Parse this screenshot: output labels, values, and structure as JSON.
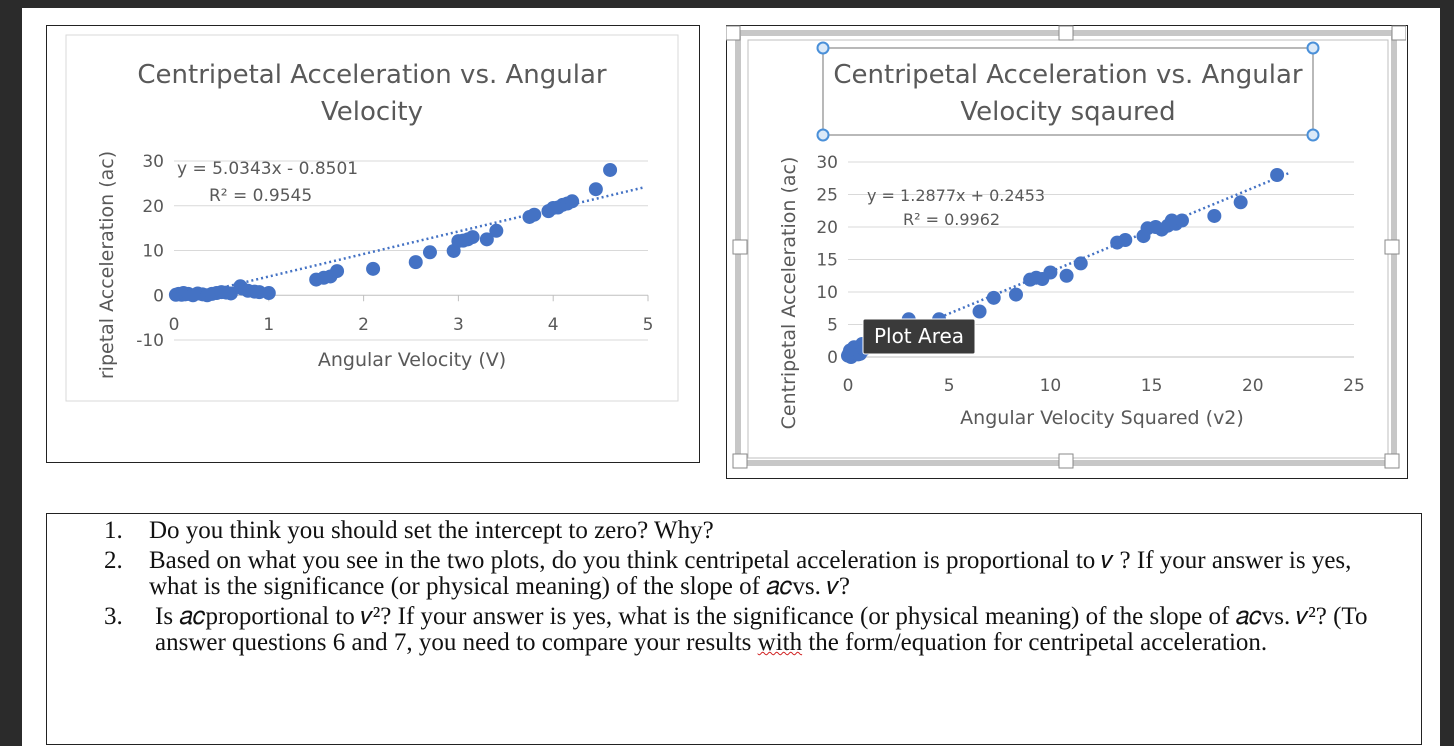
{
  "chart_data": [
    {
      "type": "scatter",
      "title": "Centripetal Acceleration vs. Angular Velocity",
      "title_lines": [
        "Centripetal Acceleration vs. Angular",
        "Velocity"
      ],
      "xlabel": "Angular Velocity (V)",
      "ylabel": "ripetal Acceleration (ac)",
      "xlim": [
        0,
        5
      ],
      "ylim": [
        -10,
        30
      ],
      "x_ticks": [
        "0",
        "1",
        "2",
        "3",
        "4",
        "5"
      ],
      "y_ticks": [
        "30",
        "20",
        "10",
        "0",
        "-10"
      ],
      "grid": true,
      "trendline": {
        "type": "linear",
        "slope": 5.0343,
        "intercept": -0.8501,
        "style": "dotted"
      },
      "equation": "y = 5.0343x - 0.8501",
      "r_squared": "R² = 0.9545",
      "series": [
        {
          "x": [
            0.02,
            0.05,
            0.08,
            0.1,
            0.12,
            0.15,
            0.2,
            0.25,
            0.3,
            0.35,
            0.4,
            0.45,
            0.5,
            0.55,
            0.6,
            0.7,
            0.72,
            0.78,
            0.85,
            0.9,
            1.0,
            1.5,
            1.58,
            1.65,
            1.72,
            2.1,
            2.55,
            2.7,
            2.95,
            3.0,
            3.05,
            3.1,
            3.15,
            3.3,
            3.4,
            3.75,
            3.8,
            3.95,
            4.0,
            4.05,
            4.1,
            4.15,
            4.2,
            4.45,
            4.6
          ],
          "y": [
            0.1,
            0.3,
            0.1,
            0.5,
            0.2,
            0.3,
            0.0,
            0.4,
            0.2,
            0.0,
            0.3,
            0.5,
            0.7,
            0.6,
            0.4,
            2.0,
            1.5,
            1.0,
            0.8,
            0.7,
            0.5,
            3.5,
            3.9,
            4.2,
            5.4,
            5.9,
            7.4,
            9.6,
            9.9,
            12.1,
            12.2,
            12.5,
            13.0,
            12.5,
            14.4,
            17.5,
            18.0,
            18.8,
            19.5,
            19.6,
            20.2,
            20.5,
            21.0,
            23.7,
            28.0
          ]
        }
      ]
    },
    {
      "type": "scatter",
      "title": "Centripetal Acceleration vs. Angular Velocity sqaured",
      "title_lines": [
        "Centripetal Acceleration vs. Angular",
        "Velocity sqaured"
      ],
      "xlabel": "Angular Velocity Squared (v2)",
      "ylabel": "Centripetal Acceleration (ac)",
      "xlim": [
        0,
        25
      ],
      "ylim": [
        0,
        30
      ],
      "x_ticks": [
        "0",
        "5",
        "10",
        "15",
        "20",
        "25"
      ],
      "y_ticks": [
        "30",
        "25",
        "20",
        "15",
        "10",
        "5",
        "0"
      ],
      "grid": true,
      "trendline": {
        "type": "linear",
        "slope": 1.2877,
        "intercept": 0.2453,
        "style": "dotted"
      },
      "equation": "y = 1.2877x + 0.2453",
      "r_squared": "R² = 0.9962",
      "series": [
        {
          "x": [
            0.0,
            0.05,
            0.1,
            0.15,
            0.2,
            0.3,
            0.4,
            0.5,
            0.6,
            0.7,
            0.8,
            3.0,
            4.5,
            6.5,
            7.2,
            8.3,
            9.0,
            9.3,
            9.6,
            10.0,
            10.8,
            11.5,
            13.3,
            13.7,
            14.6,
            14.8,
            15.2,
            15.5,
            15.8,
            16.0,
            16.2,
            16.5,
            18.1,
            19.4,
            21.2
          ],
          "y": [
            0.2,
            0.5,
            1.0,
            0.0,
            0.3,
            1.5,
            0.8,
            0.4,
            0.5,
            2.0,
            1.2,
            5.8,
            5.8,
            7.0,
            9.1,
            9.6,
            11.9,
            12.2,
            12.0,
            13.0,
            12.5,
            14.4,
            17.6,
            18.0,
            18.6,
            19.8,
            20.0,
            19.6,
            20.2,
            21.0,
            20.5,
            21.0,
            21.7,
            23.8,
            28.0
          ]
        }
      ]
    }
  ],
  "tooltip": {
    "label": "Plot Area"
  },
  "questions": [
    {
      "num": "1.",
      "text": "Do you think you should set the intercept to zero? Why?"
    },
    {
      "num": "2.",
      "text": "Based on what you see in the two plots, do you think centripetal acceleration is proportional to 𝑣 ? If your answer is yes, what is the significance (or physical meaning) of the slope of 𝑎𝑐vs. 𝑣?"
    },
    {
      "num": "3.",
      "text_before": "Is 𝑎𝑐proportional to 𝑣²? If your answer is yes, what is the significance (or physical meaning) of the slope of 𝑎𝑐vs. 𝑣²? (To answer questions 6 and 7, you need to compare your results ",
      "squiggle": "with",
      "text_after": " the form/equation for centripetal acceleration."
    }
  ],
  "colors": {
    "marker": "#4472c4",
    "grid": "#d9d9d9",
    "axis_text": "#595959",
    "selection": "#4a90d9"
  }
}
